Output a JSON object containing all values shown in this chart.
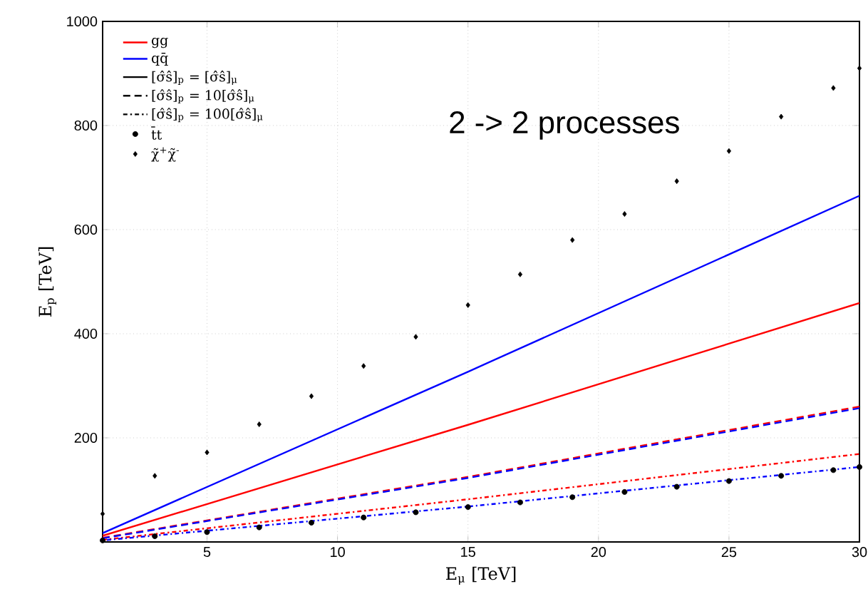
{
  "chart_data": {
    "type": "line",
    "xlabel": "E$_{μ}$ [TeV]",
    "ylabel": "E$_{p}$ [TeV]",
    "xlim": [
      1,
      30
    ],
    "ylim": [
      0,
      1000
    ],
    "xticks": [
      5,
      10,
      15,
      20,
      25,
      30
    ],
    "yticks": [
      200,
      400,
      600,
      800,
      1000
    ],
    "grid": true,
    "legend": "top left",
    "annotations": [
      "[σ̂ŝ]$_{p}$ = [σ̂ŝ]$_{μ}$",
      "[σ̂ŝ]$_{p}$ = 10[σ̂ŝ]$_{μ}$",
      "[σ̂ŝ]$_{p}$ = 100[σ̂ŝ]$_{μ}$",
      "2 -> 2 processes"
    ],
    "series": [
      {
        "name": "gg",
        "color": "#ff0000",
        "line_style": "solid",
        "x": [
          1,
          15,
          30
        ],
        "values": [
          12,
          225,
          459
        ]
      },
      {
        "name": "qq̄",
        "color": "#0000ff",
        "line_style": "solid",
        "x": [
          1,
          15,
          30
        ],
        "values": [
          17,
          327,
          665
        ]
      },
      {
        "color": "#ff0000",
        "line_style": "dashed",
        "x": [
          1,
          15,
          30
        ],
        "values": [
          8,
          125,
          260
        ]
      },
      {
        "color": "#0000ff",
        "line_style": "dashed",
        "x": [
          1,
          15,
          30
        ],
        "values": [
          7,
          123,
          257
        ]
      },
      {
        "color": "#ff0000",
        "line_style": "dashdot",
        "x": [
          1,
          15,
          30
        ],
        "values": [
          4,
          82,
          169
        ]
      },
      {
        "color": "#0000ff",
        "line_style": "dotted",
        "x": [
          1,
          15,
          30
        ],
        "values": [
          3,
          68,
          144
        ]
      },
      {
        "name": "t̄t",
        "type": "scatter",
        "marker": "circle",
        "color": "#000000",
        "x": [
          1,
          3,
          5,
          7,
          9,
          11,
          13,
          15,
          17,
          19,
          21,
          23,
          25,
          27,
          29,
          30
        ],
        "values": [
          3,
          11,
          19,
          28,
          37,
          47,
          57,
          67,
          76,
          86,
          96,
          106,
          117,
          127,
          138,
          144
        ]
      },
      {
        "name": "χ̃$^{+}$χ̃$^{-}$",
        "type": "scatter",
        "marker": "diamond",
        "color": "#000000",
        "x": [
          1,
          3,
          5,
          7,
          9,
          11,
          13,
          15,
          17,
          19,
          21,
          23,
          25,
          27,
          29,
          30
        ],
        "values": [
          54,
          127,
          172,
          226,
          280,
          338,
          394,
          455,
          514,
          580,
          630,
          693,
          751,
          817,
          872,
          910
        ]
      }
    ]
  }
}
